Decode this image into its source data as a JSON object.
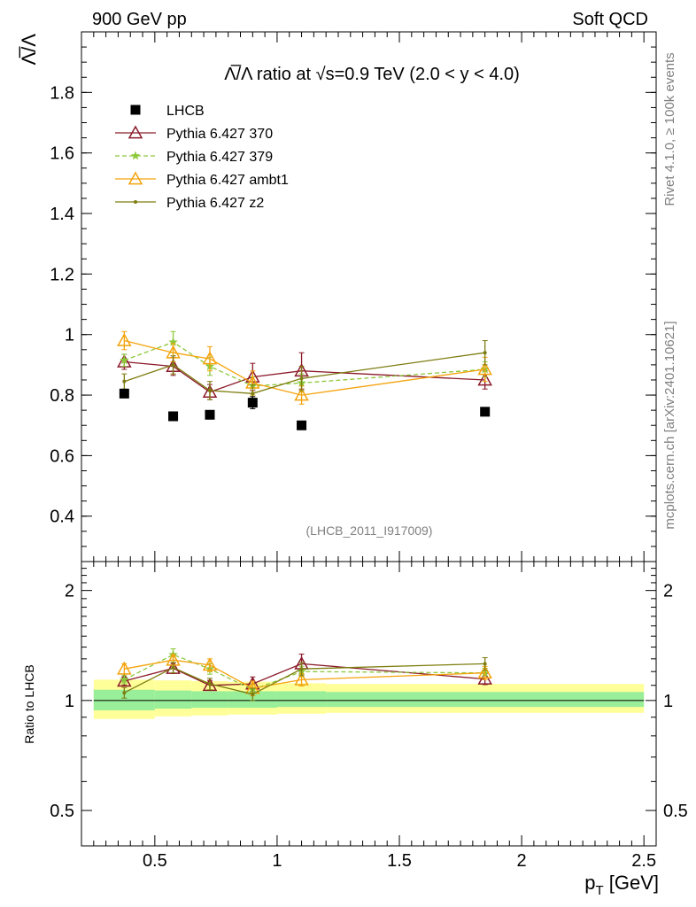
{
  "header": {
    "left": "900 GeV pp",
    "right": "Soft QCD"
  },
  "side_labels": {
    "rivet": "Rivet 4.1.0, ≥ 100k events",
    "site": "mcplots.cern.ch [arXiv:2401.10621]"
  },
  "chart_data": [
    {
      "type": "scatter",
      "title": "Λ̅/Λ ratio at √s=0.9 TeV (2.0 < y < 4.0)",
      "ylabel": "Λ̅/Λ",
      "xlabel": "",
      "xlim": [
        0.2,
        2.55
      ],
      "ylim": [
        0.25,
        2.0
      ],
      "yticks": [
        "0.4",
        "0.6",
        "0.8",
        "1",
        "1.2",
        "1.4",
        "1.6",
        "1.8"
      ],
      "yticks_values": [
        0.4,
        0.6,
        0.8,
        1.0,
        1.2,
        1.4,
        1.6,
        1.8
      ],
      "watermark": "(LHCB_2011_I917009)",
      "series": [
        {
          "name": "LHCB",
          "color": "#000000",
          "marker": "square",
          "x": [
            0.375,
            0.575,
            0.725,
            0.9,
            1.1,
            1.85
          ],
          "y": [
            0.805,
            0.73,
            0.735,
            0.775,
            0.7,
            0.745
          ],
          "err": [
            0.012,
            0.01,
            0.01,
            0.02,
            0.012,
            0.012
          ]
        },
        {
          "name": "Pythia 6.427 370",
          "color": "#8b1a2a",
          "marker": "triangle-open",
          "x": [
            0.375,
            0.575,
            0.725,
            0.9,
            1.1,
            1.85
          ],
          "y": [
            0.91,
            0.895,
            0.81,
            0.86,
            0.88,
            0.85
          ],
          "err": [
            0.025,
            0.03,
            0.025,
            0.045,
            0.06,
            0.03
          ]
        },
        {
          "name": "Pythia 6.427 379",
          "color": "#8cc83a",
          "marker": "star",
          "dashed": true,
          "x": [
            0.375,
            0.575,
            0.725,
            0.9,
            1.1,
            1.85
          ],
          "y": [
            0.915,
            0.975,
            0.895,
            0.83,
            0.84,
            0.885
          ],
          "err": [
            0.02,
            0.035,
            0.03,
            0.03,
            0.03,
            0.025
          ]
        },
        {
          "name": "Pythia 6.427 ambt1",
          "color": "#f4a30c",
          "marker": "triangle-open",
          "x": [
            0.375,
            0.575,
            0.725,
            0.9,
            1.1,
            1.85
          ],
          "y": [
            0.98,
            0.94,
            0.92,
            0.84,
            0.8,
            0.885
          ],
          "err": [
            0.03,
            0.03,
            0.04,
            0.04,
            0.03,
            0.04
          ]
        },
        {
          "name": "Pythia 6.427 z2",
          "color": "#7d7d10",
          "marker": "dot",
          "x": [
            0.375,
            0.575,
            0.725,
            0.9,
            1.1,
            1.85
          ],
          "y": [
            0.845,
            0.9,
            0.815,
            0.805,
            0.855,
            0.94
          ],
          "err": [
            0.025,
            0.03,
            0.03,
            0.03,
            0.04,
            0.04
          ]
        }
      ]
    },
    {
      "type": "scatter",
      "title": "",
      "ylabel": "Ratio to LHCB",
      "xlabel": "p_T [GeV]",
      "xlim": [
        0.2,
        2.55
      ],
      "ylim": [
        0.4,
        2.4
      ],
      "yscale": "log",
      "xticks": [
        "0.5",
        "1",
        "1.5",
        "2",
        "2.5"
      ],
      "xticks_values": [
        0.5,
        1.0,
        1.5,
        2.0,
        2.5
      ],
      "yticks": [
        "0.5",
        "1",
        "2"
      ],
      "yticks_values": [
        0.5,
        1.0,
        2.0
      ],
      "bands": {
        "x_edges": [
          0.25,
          0.5,
          0.65,
          0.8,
          1.0,
          1.2,
          2.5
        ],
        "yellow_lo": [
          0.89,
          0.905,
          0.91,
          0.915,
          0.92,
          0.925
        ],
        "yellow_hi": [
          1.14,
          1.135,
          1.13,
          1.125,
          1.115,
          1.11
        ],
        "green_lo": [
          0.94,
          0.95,
          0.955,
          0.955,
          0.96,
          0.96
        ],
        "green_hi": [
          1.07,
          1.065,
          1.06,
          1.06,
          1.06,
          1.055
        ]
      },
      "series": [
        {
          "name": "Pythia 6.427 370",
          "color": "#8b1a2a",
          "marker": "triangle-open",
          "x": [
            0.375,
            0.575,
            0.725,
            0.9,
            1.1,
            1.85
          ],
          "y": [
            1.13,
            1.225,
            1.1,
            1.11,
            1.26,
            1.145
          ],
          "err": [
            0.03,
            0.04,
            0.035,
            0.05,
            0.08,
            0.04
          ]
        },
        {
          "name": "Pythia 6.427 379",
          "color": "#8cc83a",
          "marker": "star",
          "dashed": true,
          "x": [
            0.375,
            0.575,
            0.725,
            0.9,
            1.1,
            1.85
          ],
          "y": [
            1.14,
            1.335,
            1.22,
            1.07,
            1.2,
            1.19
          ],
          "err": [
            0.03,
            0.05,
            0.04,
            0.04,
            0.04,
            0.035
          ]
        },
        {
          "name": "Pythia 6.427 ambt1",
          "color": "#f4a30c",
          "marker": "triangle-open",
          "x": [
            0.375,
            0.575,
            0.725,
            0.9,
            1.1,
            1.85
          ],
          "y": [
            1.22,
            1.29,
            1.25,
            1.08,
            1.14,
            1.19
          ],
          "err": [
            0.04,
            0.04,
            0.05,
            0.05,
            0.045,
            0.05
          ]
        },
        {
          "name": "Pythia 6.427 z2",
          "color": "#7d7d10",
          "marker": "dot",
          "x": [
            0.375,
            0.575,
            0.725,
            0.9,
            1.1,
            1.85
          ],
          "y": [
            1.05,
            1.23,
            1.11,
            1.04,
            1.22,
            1.26
          ],
          "err": [
            0.035,
            0.04,
            0.04,
            0.04,
            0.05,
            0.05
          ]
        }
      ]
    }
  ]
}
